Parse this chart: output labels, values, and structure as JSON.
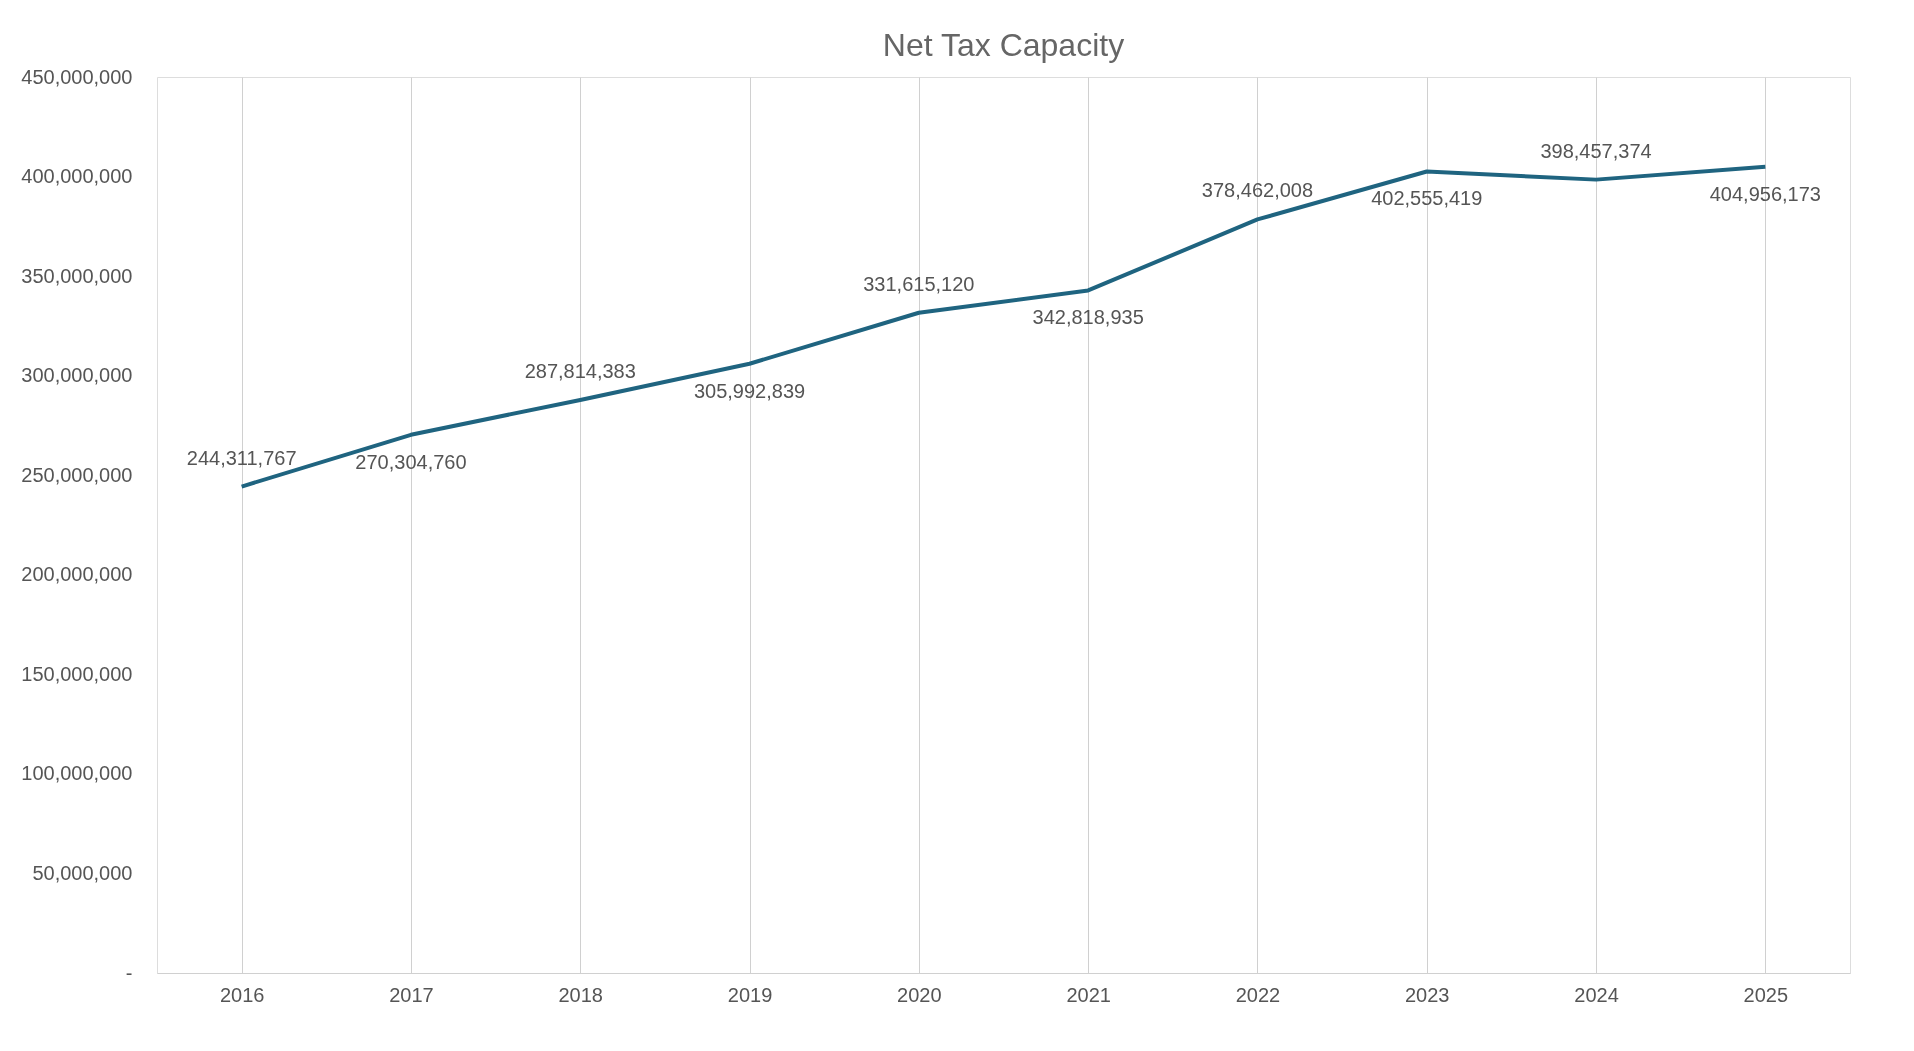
{
  "chart_data": {
    "type": "line",
    "title": "Net Tax Capacity",
    "categories": [
      "2016",
      "2017",
      "2018",
      "2019",
      "2020",
      "2021",
      "2022",
      "2023",
      "2024",
      "2025"
    ],
    "series": [
      {
        "color": "#1f6480",
        "values": [
          244311767,
          270304760,
          287814383,
          305992839,
          331615120,
          342818935,
          378462008,
          402555419,
          398457374,
          404956173
        ],
        "value_labels": [
          "244,311,767",
          "270,304,760",
          "287,814,383",
          "305,992,839",
          "331,615,120",
          "342,818,935",
          "378,462,008",
          "402,555,419",
          "398,457,374",
          "404,956,173"
        ]
      }
    ],
    "ylim": [
      0,
      450000000
    ],
    "yticks": [
      {
        "value": 0,
        "label": "-"
      },
      {
        "value": 50000000,
        "label": "50,000,000"
      },
      {
        "value": 100000000,
        "label": "100,000,000"
      },
      {
        "value": 150000000,
        "label": "150,000,000"
      },
      {
        "value": 200000000,
        "label": "200,000,000"
      },
      {
        "value": 250000000,
        "label": "250,000,000"
      },
      {
        "value": 300000000,
        "label": "300,000,000"
      },
      {
        "value": 350000000,
        "label": "350,000,000"
      },
      {
        "value": 400000000,
        "label": "400,000,000"
      },
      {
        "value": 450000000,
        "label": "450,000,000"
      }
    ],
    "grid": "x",
    "marker": "none",
    "line_style": "solid"
  }
}
